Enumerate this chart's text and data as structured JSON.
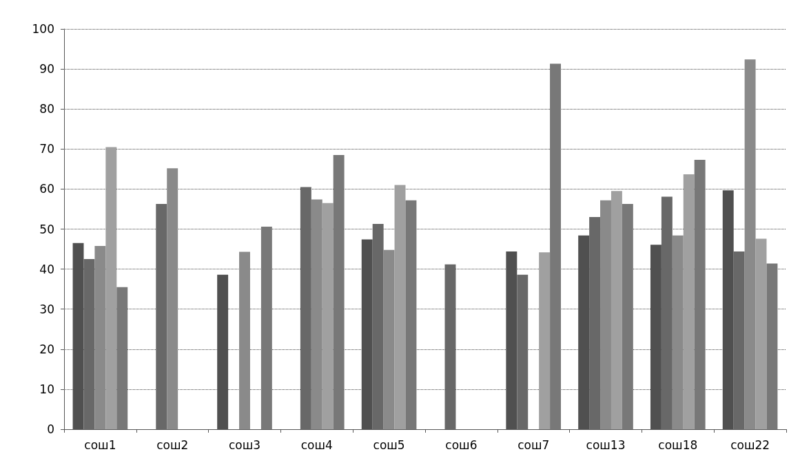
{
  "chart_data": {
    "type": "bar",
    "categories": [
      "сош1",
      "сош2",
      "сош3",
      "сош4",
      "сош5",
      "сош6",
      "сош7",
      "сош13",
      "сош18",
      "сош22"
    ],
    "series": [
      {
        "color": "#505050",
        "values": [
          46.5,
          null,
          38.6,
          null,
          47.4,
          null,
          44.4,
          48.4,
          46.1,
          59.7
        ]
      },
      {
        "color": "#686868",
        "values": [
          42.5,
          56.3,
          null,
          60.5,
          51.3,
          41.2,
          38.6,
          53,
          58.1,
          44.4
        ]
      },
      {
        "color": "#8a8a8a",
        "values": [
          45.8,
          65.2,
          44.3,
          57.4,
          44.8,
          null,
          null,
          57.2,
          48.4,
          92.4
        ]
      },
      {
        "color": "#a0a0a0",
        "values": [
          70.5,
          null,
          null,
          56.5,
          61,
          null,
          44.2,
          59.5,
          63.7,
          47.6
        ]
      },
      {
        "color": "#787878",
        "values": [
          35.5,
          null,
          50.6,
          68.5,
          57.2,
          null,
          91.3,
          56.3,
          67.3,
          41.4
        ]
      }
    ],
    "ylim": [
      0,
      100
    ],
    "yticks": [
      0,
      10,
      20,
      30,
      40,
      50,
      60,
      70,
      80,
      90,
      100
    ],
    "grid": "y"
  }
}
